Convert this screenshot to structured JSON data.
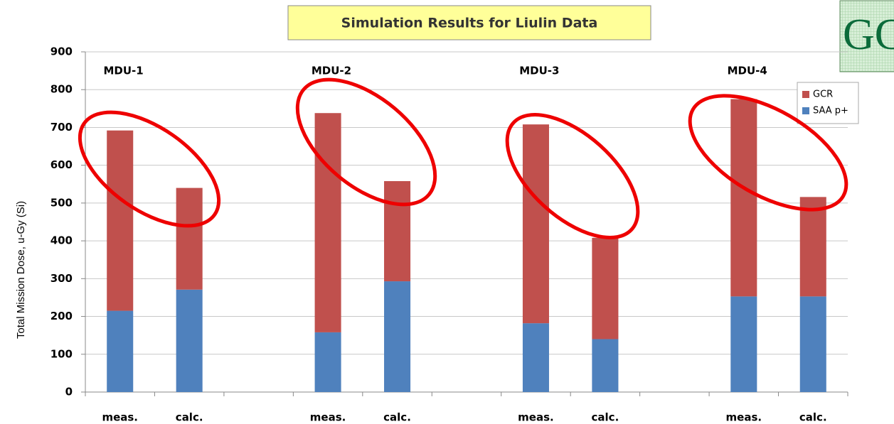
{
  "chart_data": {
    "type": "stacked_bar",
    "title": "Simulation Results for Liulin Data",
    "logo_text": "GC",
    "y_label": "Total Mission Dose, u-Gy (Si)",
    "categories": [
      "meas.",
      "calc.",
      null,
      "meas.",
      "calc.",
      null,
      "meas.",
      "calc.",
      null,
      "meas.",
      "calc."
    ],
    "groups": [
      "MDU-1",
      "MDU-2",
      "MDU-3",
      "MDU-4"
    ],
    "series": [
      {
        "name": "SAA p+",
        "color": "#4f81bd",
        "values": [
          215,
          271,
          null,
          158,
          293,
          null,
          182,
          140,
          null,
          253,
          253
        ]
      },
      {
        "name": "GCR",
        "color": "#c0504d",
        "values": [
          477,
          269,
          null,
          580,
          265,
          null,
          526,
          268,
          null,
          522,
          263
        ]
      }
    ],
    "ylim": [
      0,
      900
    ],
    "yticks": [
      0,
      100,
      200,
      300,
      400,
      500,
      600,
      700,
      800,
      900
    ],
    "grid": true,
    "legend": "right"
  }
}
